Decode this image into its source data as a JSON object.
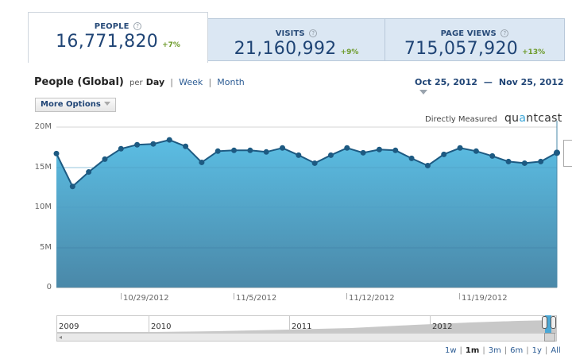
{
  "metrics": [
    {
      "label": "PEOPLE",
      "value": "16,771,820",
      "delta": "+7%",
      "active": true
    },
    {
      "label": "VISITS",
      "value": "21,160,992",
      "delta": "+9%",
      "active": false
    },
    {
      "label": "PAGE VIEWS",
      "value": "715,057,920",
      "delta": "+13%",
      "active": false
    }
  ],
  "help_glyph": "?",
  "chart_header": {
    "title": "People (Global)",
    "per": "per",
    "granularity": [
      {
        "label": "Day",
        "selected": true
      },
      {
        "label": "Week",
        "selected": false
      },
      {
        "label": "Month",
        "selected": false
      }
    ],
    "separator": "|"
  },
  "date_range": {
    "start": "Oct 25, 2012",
    "dash": "—",
    "end": "Nov 25, 2012"
  },
  "more_options": {
    "label": "More Options"
  },
  "attribution": {
    "measured": "Directly Measured",
    "brand_pre": "qu",
    "brand_accent": "a",
    "brand_post": "ntcast"
  },
  "colors": {
    "area_top": "#5bbde3",
    "area_bottom": "#4a88a8",
    "line": "#1d5a82",
    "point": "#1d5a82",
    "title_blue": "#1f4475",
    "delta_green": "#6c9a2a",
    "inactive_tab": "#dbe7f3"
  },
  "navigator": {
    "years": [
      "2009",
      "2010",
      "2011",
      "2012"
    ],
    "scroll_left_glyph": "◂"
  },
  "range_buttons": [
    {
      "label": "1w",
      "selected": false
    },
    {
      "label": "1m",
      "selected": true
    },
    {
      "label": "3m",
      "selected": false
    },
    {
      "label": "6m",
      "selected": false
    },
    {
      "label": "1y",
      "selected": false
    },
    {
      "label": "All",
      "selected": false
    }
  ],
  "chart_data": {
    "type": "area",
    "title": "People (Global) per Day",
    "xlabel": "",
    "ylabel": "",
    "ylim": [
      0,
      20000000
    ],
    "y_ticks": [
      "0",
      "5M",
      "10M",
      "15M",
      "20M"
    ],
    "x_ticks": [
      "10/29/2012",
      "11/5/2012",
      "11/12/2012",
      "11/19/2012"
    ],
    "grid": true,
    "legend": "none",
    "series": [
      {
        "name": "People",
        "x": [
          "2012-10-25",
          "2012-10-26",
          "2012-10-27",
          "2012-10-28",
          "2012-10-29",
          "2012-10-30",
          "2012-10-31",
          "2012-11-01",
          "2012-11-02",
          "2012-11-03",
          "2012-11-04",
          "2012-11-05",
          "2012-11-06",
          "2012-11-07",
          "2012-11-08",
          "2012-11-09",
          "2012-11-10",
          "2012-11-11",
          "2012-11-12",
          "2012-11-13",
          "2012-11-14",
          "2012-11-15",
          "2012-11-16",
          "2012-11-17",
          "2012-11-18",
          "2012-11-19",
          "2012-11-20",
          "2012-11-21",
          "2012-11-22",
          "2012-11-23",
          "2012-11-24",
          "2012-11-25"
        ],
        "values": [
          16.7,
          12.6,
          14.4,
          16.0,
          17.3,
          17.8,
          17.9,
          18.4,
          17.6,
          15.6,
          17.0,
          17.1,
          17.1,
          16.9,
          17.4,
          16.5,
          15.5,
          16.5,
          17.4,
          16.8,
          17.2,
          17.1,
          16.1,
          15.2,
          16.6,
          17.4,
          17.0,
          16.4,
          15.7,
          15.5,
          15.7,
          16.8
        ],
        "unit": "M"
      }
    ]
  }
}
